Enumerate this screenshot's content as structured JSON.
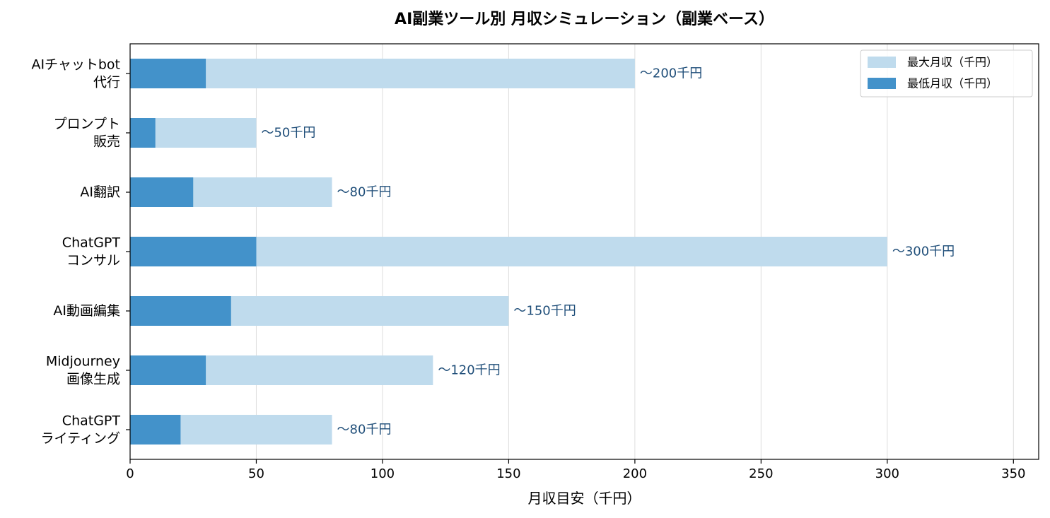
{
  "chart_data": {
    "type": "bar",
    "orientation": "horizontal",
    "stacking": "overlay",
    "title": "AI副業ツール別 月収シミュレーション（副業ベース）",
    "xlabel": "月収目安（千円）",
    "ylabel": "",
    "xlim": [
      0,
      360
    ],
    "xticks": [
      0,
      50,
      100,
      150,
      200,
      250,
      300,
      350
    ],
    "grid": "x",
    "legend_position": "top-right",
    "categories": [
      [
        "AIチャットbot",
        "代行"
      ],
      [
        "プロンプト",
        "販売"
      ],
      [
        "AI翻訳"
      ],
      [
        "ChatGPT",
        "コンサル"
      ],
      [
        "AI動画編集"
      ],
      [
        "Midjourney",
        "画像生成"
      ],
      [
        "ChatGPT",
        "ライティング"
      ]
    ],
    "series": [
      {
        "name": "最大月収（千円）",
        "color": "#bfdbed",
        "values": [
          200,
          50,
          80,
          300,
          150,
          120,
          80
        ]
      },
      {
        "name": "最低月収（千円）",
        "color": "#4392ca",
        "values": [
          30,
          10,
          25,
          50,
          40,
          30,
          20
        ]
      }
    ],
    "annotations": [
      "〜200千円",
      "〜50千円",
      "〜80千円",
      "〜300千円",
      "〜150千円",
      "〜120千円",
      "〜80千円"
    ],
    "annotation_color": "#1f4e79"
  }
}
